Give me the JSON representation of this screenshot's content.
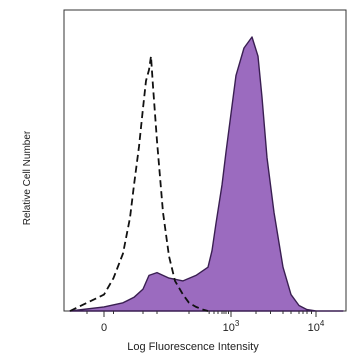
{
  "chart_data": {
    "type": "area",
    "xlabel": "Log Fluorescence Intensity",
    "ylabel": "Relative Cell Number",
    "x_scale": "biexponential",
    "xlim": [
      -10,
      20000
    ],
    "ylim": [
      0,
      1
    ],
    "x_ticks": [
      {
        "value": 0,
        "label": "0"
      },
      {
        "value": 1000,
        "label": "10",
        "exp": "3"
      },
      {
        "value": 10000,
        "label": "10",
        "exp": "4"
      }
    ],
    "grid": false,
    "legend": "none",
    "series": [
      {
        "style": "dashed-outline",
        "color": "#111111",
        "x": [
          -10,
          0,
          5,
          10,
          20,
          30,
          40,
          50,
          60,
          70,
          80,
          90,
          100,
          120,
          140,
          160,
          180,
          200,
          220,
          240,
          260
        ],
        "y": [
          0.0,
          0.06,
          0.12,
          0.21,
          0.34,
          0.46,
          0.6,
          0.74,
          0.84,
          0.88,
          0.93,
          0.82,
          0.62,
          0.36,
          0.2,
          0.11,
          0.06,
          0.03,
          0.015,
          0.005,
          0.0
        ]
      },
      {
        "style": "filled",
        "color": "#9b6bbf",
        "edge_color": "#3a1f52",
        "x": [
          -10,
          0,
          10,
          30,
          50,
          70,
          100,
          140,
          180,
          220,
          280,
          350,
          450,
          600,
          800,
          1000,
          1200,
          1500,
          1800,
          2100,
          2400,
          2800,
          3200,
          4000,
          5000,
          6000,
          8000,
          10000,
          20000
        ],
        "y": [
          0.0,
          0.015,
          0.03,
          0.05,
          0.08,
          0.13,
          0.14,
          0.12,
          0.11,
          0.13,
          0.16,
          0.22,
          0.32,
          0.46,
          0.58,
          0.72,
          0.86,
          0.96,
          1.0,
          0.93,
          0.78,
          0.56,
          0.36,
          0.16,
          0.06,
          0.02,
          0.005,
          0.0,
          0.0
        ]
      }
    ]
  }
}
